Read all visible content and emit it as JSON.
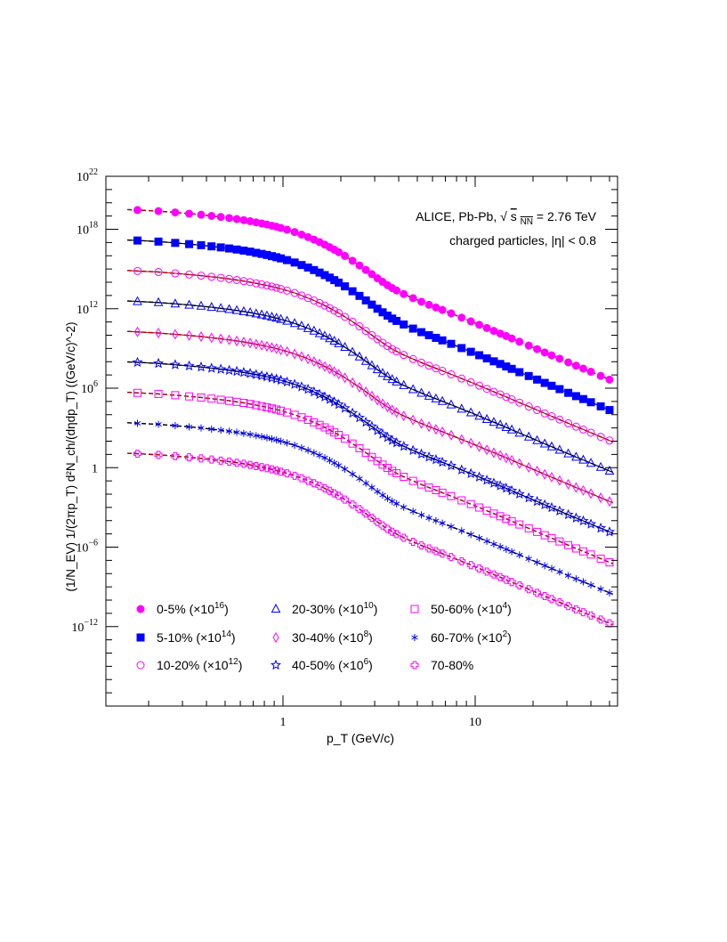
{
  "chart_data": {
    "type": "scatter",
    "title": "",
    "xlabel": "p_T (GeV/c)",
    "ylabel": "(1/N_EV) 1/(2πp_T) d²N_ch/(dηdp_T) ((GeV/c)^-2)",
    "xscale": "log",
    "yscale": "log",
    "xlim": [
      0.15,
      52
    ],
    "ylim_exponent": [
      -18,
      22
    ],
    "x_ticks": [
      {
        "value": 1,
        "label": "1"
      },
      {
        "value": 10,
        "label": "10"
      }
    ],
    "y_ticks": [
      {
        "exp": 22,
        "base": "10",
        "sup": "22"
      },
      {
        "exp": 18,
        "base": "10",
        "sup": "18"
      },
      {
        "exp": 12,
        "base": "10",
        "sup": "12"
      },
      {
        "exp": 6,
        "base": "10",
        "sup": "6"
      },
      {
        "exp": 0,
        "base": "1",
        "sup": ""
      },
      {
        "exp": -6,
        "base": "10",
        "sup": "−6"
      },
      {
        "exp": -12,
        "base": "10",
        "sup": "−12"
      }
    ],
    "annotations": {
      "line1_main": "ALICE, Pb-Pb, ",
      "line1_s": "s",
      "line1_sub": "NN",
      "line1_rest": " = 2.76 TeV",
      "line2": "charged particles, |η| < 0.8"
    },
    "x": [
      0.175,
      0.225,
      0.275,
      0.325,
      0.375,
      0.425,
      0.475,
      0.525,
      0.575,
      0.625,
      0.675,
      0.725,
      0.775,
      0.825,
      0.875,
      0.925,
      0.975,
      1.05,
      1.15,
      1.25,
      1.35,
      1.45,
      1.55,
      1.65,
      1.75,
      1.85,
      1.95,
      2.1,
      2.3,
      2.5,
      2.7,
      2.9,
      3.1,
      3.3,
      3.5,
      3.7,
      3.9,
      4.25,
      4.75,
      5.25,
      5.75,
      6.25,
      6.75,
      7.5,
      8.5,
      9.5,
      10.5,
      11.5,
      12.5,
      13.5,
      14.5,
      15.5,
      17.0,
      19.0,
      21.0,
      23.0,
      25.0,
      27.5,
      30.5,
      33.5,
      36.5,
      40.0,
      45.0,
      50.0
    ],
    "series": [
      {
        "name": "0-5%",
        "scale": "(×10",
        "scale_exp": "16",
        "color": "#ff00ff",
        "marker": "filled-circle",
        "scale_log10": 16,
        "values_log10": [
          19.45,
          19.37,
          19.27,
          19.18,
          19.1,
          19.01,
          18.93,
          18.85,
          18.77,
          18.69,
          18.61,
          18.52,
          18.44,
          18.36,
          18.27,
          18.19,
          18.1,
          17.97,
          17.79,
          17.6,
          17.41,
          17.22,
          17.03,
          16.84,
          16.65,
          16.46,
          16.27,
          15.99,
          15.62,
          15.27,
          14.93,
          14.61,
          14.3,
          14.03,
          13.78,
          13.56,
          13.38,
          13.11,
          12.8,
          12.53,
          12.3,
          12.1,
          11.91,
          11.65,
          11.33,
          11.05,
          10.79,
          10.55,
          10.33,
          10.13,
          9.94,
          9.76,
          9.51,
          9.22,
          8.95,
          8.7,
          8.48,
          8.23,
          7.95,
          7.7,
          7.48,
          7.24,
          6.93,
          6.65
        ]
      },
      {
        "name": "5-10%",
        "scale": "(×10",
        "scale_exp": "14",
        "color": "#0000ff",
        "marker": "filled-square",
        "scale_log10": 14,
        "values_log10": [
          17.15,
          17.07,
          16.97,
          16.88,
          16.8,
          16.71,
          16.63,
          16.55,
          16.47,
          16.39,
          16.31,
          16.22,
          16.14,
          16.06,
          15.97,
          15.89,
          15.8,
          15.67,
          15.49,
          15.3,
          15.11,
          14.92,
          14.73,
          14.54,
          14.35,
          14.16,
          13.97,
          13.69,
          13.32,
          12.97,
          12.63,
          12.31,
          12.0,
          11.73,
          11.48,
          11.26,
          11.08,
          10.81,
          10.5,
          10.23,
          10.0,
          9.8,
          9.61,
          9.35,
          9.03,
          8.75,
          8.49,
          8.25,
          8.03,
          7.83,
          7.64,
          7.46,
          7.21,
          6.92,
          6.65,
          6.4,
          6.18,
          5.93,
          5.65,
          5.4,
          5.18,
          4.94,
          4.63,
          4.35
        ]
      },
      {
        "name": "10-20%",
        "scale": "(×10",
        "scale_exp": "12",
        "color": "#ff00ff",
        "marker": "open-circle",
        "scale_log10": 12,
        "values_log10": [
          14.85,
          14.77,
          14.67,
          14.58,
          14.5,
          14.41,
          14.33,
          14.25,
          14.17,
          14.09,
          14.01,
          13.92,
          13.84,
          13.76,
          13.67,
          13.59,
          13.5,
          13.37,
          13.19,
          13.0,
          12.81,
          12.62,
          12.43,
          12.24,
          12.05,
          11.86,
          11.67,
          11.39,
          11.02,
          10.67,
          10.33,
          10.01,
          9.7,
          9.43,
          9.18,
          8.96,
          8.78,
          8.51,
          8.2,
          7.93,
          7.7,
          7.5,
          7.31,
          7.05,
          6.73,
          6.45,
          6.19,
          5.95,
          5.73,
          5.53,
          5.34,
          5.16,
          4.91,
          4.62,
          4.35,
          4.1,
          3.88,
          3.63,
          3.35,
          3.1,
          2.88,
          2.64,
          2.33,
          2.05
        ]
      },
      {
        "name": "20-30%",
        "scale": "(×10",
        "scale_exp": "10",
        "color": "#0000ff",
        "marker": "open-triangle",
        "scale_log10": 10,
        "values_log10": [
          12.55,
          12.47,
          12.37,
          12.28,
          12.2,
          12.11,
          12.03,
          11.95,
          11.87,
          11.79,
          11.71,
          11.62,
          11.54,
          11.46,
          11.37,
          11.29,
          11.2,
          11.07,
          10.89,
          10.7,
          10.51,
          10.32,
          10.13,
          9.94,
          9.75,
          9.56,
          9.37,
          9.09,
          8.72,
          8.37,
          8.03,
          7.71,
          7.4,
          7.13,
          6.88,
          6.66,
          6.48,
          6.21,
          5.9,
          5.63,
          5.4,
          5.2,
          5.01,
          4.75,
          4.43,
          4.15,
          3.89,
          3.65,
          3.43,
          3.23,
          3.04,
          2.86,
          2.61,
          2.32,
          2.05,
          1.8,
          1.58,
          1.33,
          1.05,
          0.8,
          0.58,
          0.34,
          0.03,
          -0.25
        ]
      },
      {
        "name": "30-40%",
        "scale": "(×10",
        "scale_exp": "8",
        "color": "#ff00ff",
        "marker": "open-diamond",
        "scale_log10": 8,
        "values_log10": [
          10.25,
          10.17,
          10.07,
          9.98,
          9.9,
          9.81,
          9.73,
          9.65,
          9.57,
          9.49,
          9.41,
          9.32,
          9.24,
          9.16,
          9.07,
          8.99,
          8.9,
          8.77,
          8.59,
          8.4,
          8.21,
          8.02,
          7.83,
          7.64,
          7.45,
          7.26,
          7.07,
          6.79,
          6.42,
          6.07,
          5.73,
          5.41,
          5.1,
          4.83,
          4.58,
          4.36,
          4.18,
          3.91,
          3.6,
          3.33,
          3.1,
          2.9,
          2.71,
          2.45,
          2.13,
          1.85,
          1.59,
          1.35,
          1.13,
          0.93,
          0.74,
          0.56,
          0.31,
          0.02,
          -0.25,
          -0.5,
          -0.72,
          -0.97,
          -1.25,
          -1.5,
          -1.72,
          -1.96,
          -2.27,
          -2.55
        ]
      },
      {
        "name": "40-50%",
        "scale": "(×10",
        "scale_exp": "6",
        "color": "#0000ff",
        "marker": "open-star",
        "scale_log10": 6,
        "values_log10": [
          7.95,
          7.87,
          7.77,
          7.68,
          7.6,
          7.51,
          7.43,
          7.35,
          7.27,
          7.19,
          7.11,
          7.02,
          6.94,
          6.86,
          6.77,
          6.69,
          6.6,
          6.47,
          6.29,
          6.1,
          5.91,
          5.72,
          5.53,
          5.34,
          5.15,
          4.96,
          4.77,
          4.49,
          4.12,
          3.77,
          3.43,
          3.11,
          2.8,
          2.53,
          2.28,
          2.06,
          1.88,
          1.61,
          1.3,
          1.03,
          0.8,
          0.6,
          0.41,
          0.15,
          -0.17,
          -0.45,
          -0.71,
          -0.95,
          -1.17,
          -1.37,
          -1.56,
          -1.74,
          -1.99,
          -2.28,
          -2.55,
          -2.8,
          -3.02,
          -3.27,
          -3.55,
          -3.8,
          -4.02,
          -4.26,
          -4.57,
          -4.85
        ]
      },
      {
        "name": "50-60%",
        "scale": "(×10",
        "scale_exp": "4",
        "color": "#ff00ff",
        "marker": "open-square",
        "scale_log10": 4,
        "values_log10": [
          5.65,
          5.57,
          5.47,
          5.38,
          5.3,
          5.21,
          5.13,
          5.05,
          4.97,
          4.89,
          4.81,
          4.72,
          4.64,
          4.56,
          4.47,
          4.39,
          4.3,
          4.17,
          3.99,
          3.8,
          3.61,
          3.42,
          3.23,
          3.04,
          2.85,
          2.66,
          2.47,
          2.19,
          1.82,
          1.47,
          1.13,
          0.81,
          0.5,
          0.23,
          -0.02,
          -0.24,
          -0.42,
          -0.69,
          -1.0,
          -1.27,
          -1.5,
          -1.7,
          -1.89,
          -2.15,
          -2.47,
          -2.75,
          -3.01,
          -3.25,
          -3.47,
          -3.67,
          -3.86,
          -4.04,
          -4.29,
          -4.58,
          -4.85,
          -5.1,
          -5.32,
          -5.57,
          -5.85,
          -6.1,
          -6.32,
          -6.56,
          -6.87,
          -7.15
        ]
      },
      {
        "name": "60-70%",
        "scale": "(×10",
        "scale_exp": "2",
        "color": "#0000ff",
        "marker": "asterisk",
        "scale_log10": 2,
        "values_log10": [
          3.35,
          3.27,
          3.17,
          3.08,
          3.0,
          2.91,
          2.83,
          2.75,
          2.67,
          2.59,
          2.51,
          2.42,
          2.34,
          2.26,
          2.17,
          2.09,
          2.0,
          1.87,
          1.69,
          1.5,
          1.31,
          1.12,
          0.93,
          0.74,
          0.55,
          0.36,
          0.17,
          -0.11,
          -0.48,
          -0.83,
          -1.17,
          -1.49,
          -1.8,
          -2.07,
          -2.32,
          -2.54,
          -2.72,
          -2.99,
          -3.3,
          -3.57,
          -3.8,
          -4.0,
          -4.19,
          -4.45,
          -4.77,
          -5.05,
          -5.31,
          -5.55,
          -5.77,
          -5.97,
          -6.16,
          -6.34,
          -6.59,
          -6.88,
          -7.15,
          -7.4,
          -7.62,
          -7.87,
          -8.15,
          -8.4,
          -8.62,
          -8.86,
          -9.17,
          -9.45
        ]
      },
      {
        "name": "70-80%",
        "scale": "",
        "scale_exp": "",
        "color": "#ff00ff",
        "marker": "open-cross",
        "scale_log10": 0,
        "values_log10": [
          1.05,
          0.97,
          0.87,
          0.78,
          0.7,
          0.61,
          0.53,
          0.45,
          0.37,
          0.29,
          0.21,
          0.12,
          0.04,
          -0.04,
          -0.13,
          -0.21,
          -0.3,
          -0.43,
          -0.61,
          -0.8,
          -0.99,
          -1.18,
          -1.37,
          -1.56,
          -1.75,
          -1.94,
          -2.13,
          -2.41,
          -2.78,
          -3.13,
          -3.47,
          -3.79,
          -4.1,
          -4.37,
          -4.62,
          -4.84,
          -5.02,
          -5.29,
          -5.6,
          -5.87,
          -6.1,
          -6.3,
          -6.49,
          -6.75,
          -7.07,
          -7.35,
          -7.61,
          -7.85,
          -8.07,
          -8.27,
          -8.46,
          -8.64,
          -8.89,
          -9.18,
          -9.45,
          -9.7,
          -9.92,
          -10.17,
          -10.45,
          -10.7,
          -10.92,
          -11.16,
          -11.47,
          -11.75
        ]
      }
    ]
  }
}
